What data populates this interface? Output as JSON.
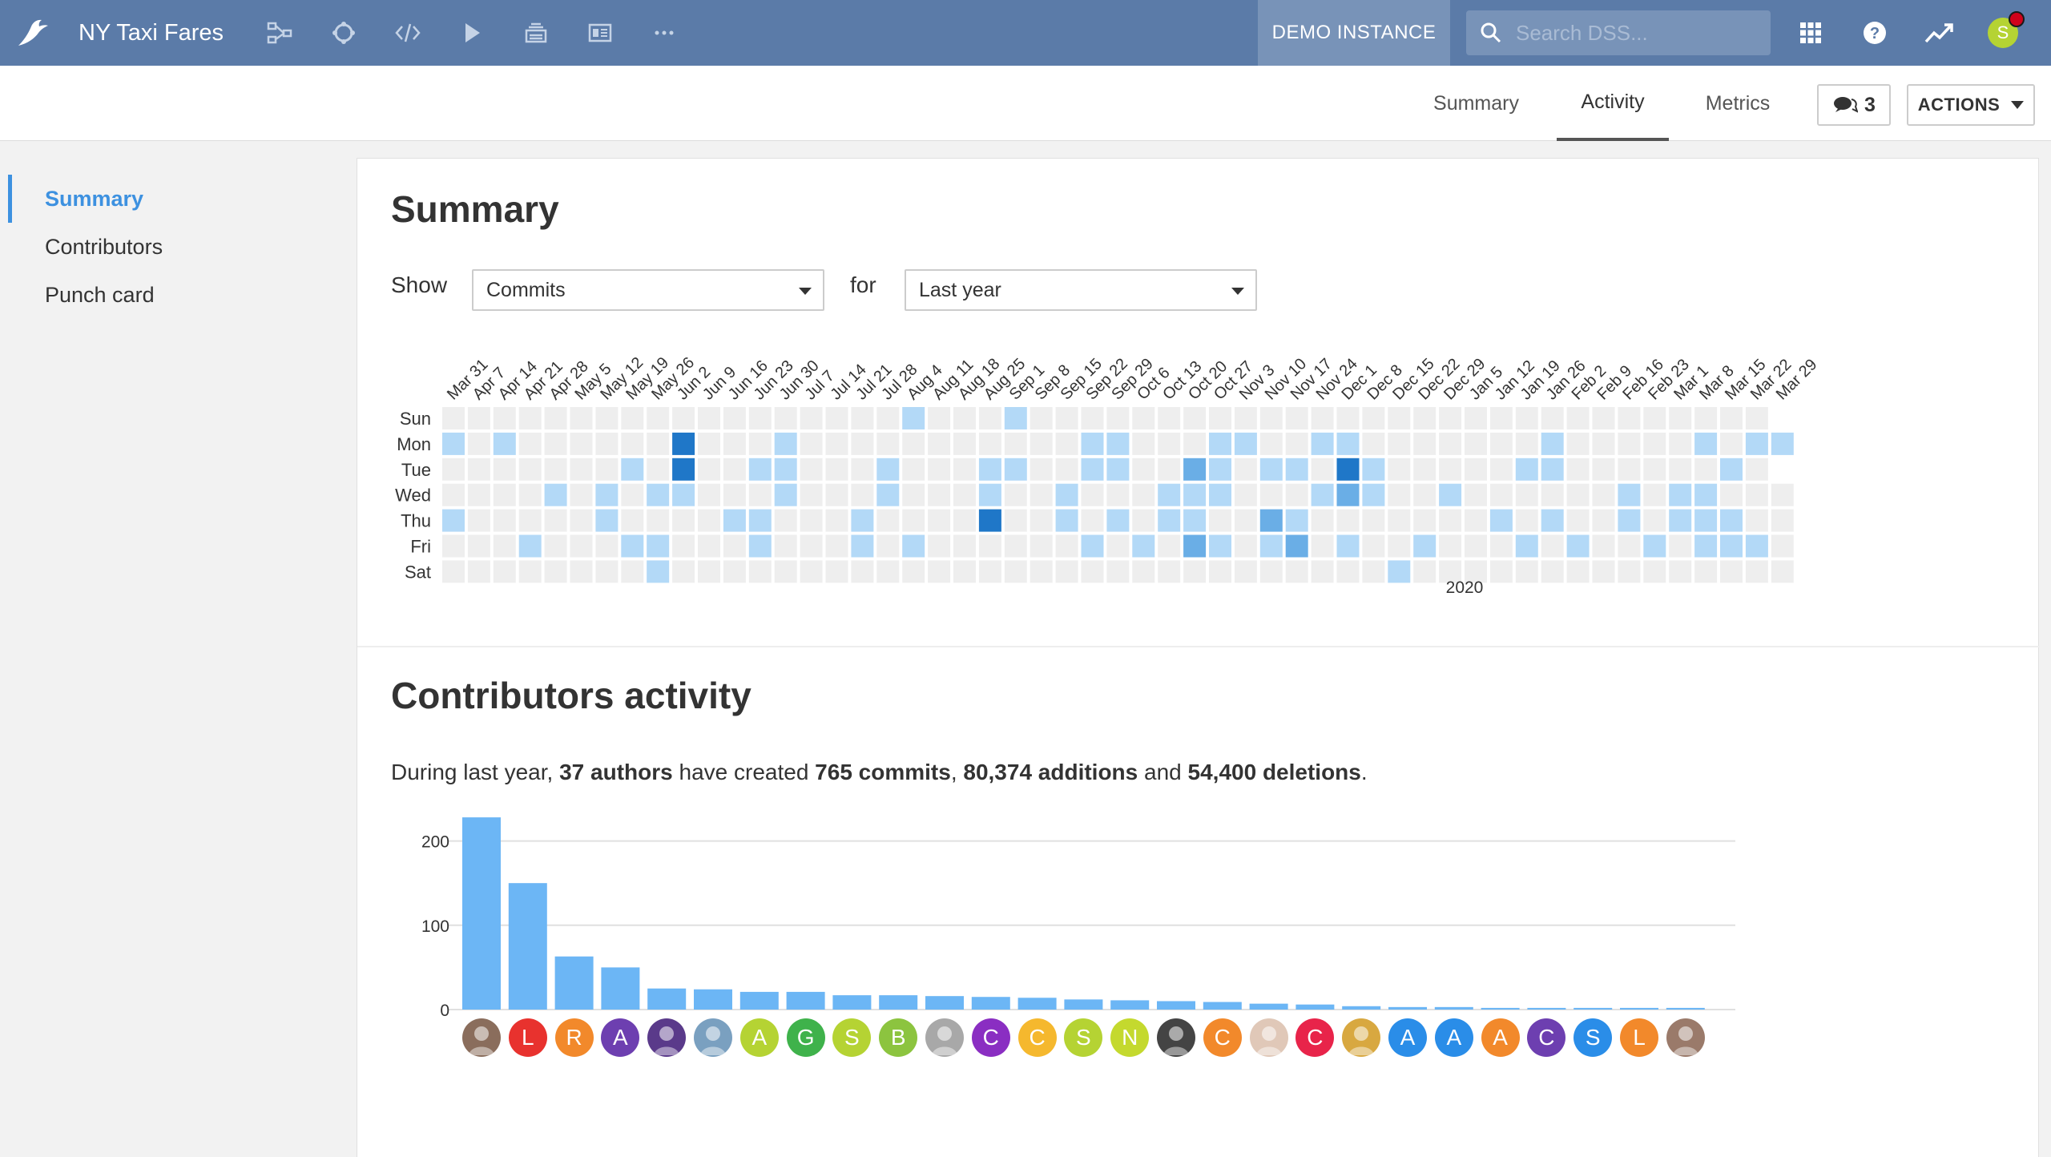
{
  "app": {
    "project_title": "NY Taxi Fares",
    "instance_label": "DEMO INSTANCE",
    "search_placeholder": "Search DSS...",
    "user_initial": "S",
    "nav_icons": [
      "flow-icon",
      "recipes-icon",
      "code-icon",
      "run-icon",
      "deploy-icon",
      "dashboard-icon",
      "more-icon"
    ]
  },
  "subnav": {
    "tabs": [
      {
        "label": "Summary",
        "active": false
      },
      {
        "label": "Activity",
        "active": true
      },
      {
        "label": "Metrics",
        "active": false
      }
    ],
    "comments_count": "3",
    "actions_label": "ACTIONS"
  },
  "sidebar": {
    "items": [
      {
        "label": "Summary",
        "active": true
      },
      {
        "label": "Contributors",
        "active": false
      },
      {
        "label": "Punch card",
        "active": false
      }
    ]
  },
  "summary": {
    "title": "Summary",
    "show_label": "Show",
    "show_value": "Commits",
    "for_label": "for",
    "for_value": "Last year"
  },
  "heatmap": {
    "week_labels": [
      "Mar 31",
      "Apr 7",
      "Apr 14",
      "Apr 21",
      "Apr 28",
      "May 5",
      "May 12",
      "May 19",
      "May 26",
      "Jun 2",
      "Jun 9",
      "Jun 16",
      "Jun 23",
      "Jun 30",
      "Jul 7",
      "Jul 14",
      "Jul 21",
      "Jul 28",
      "Aug 4",
      "Aug 11",
      "Aug 18",
      "Aug 25",
      "Sep 1",
      "Sep 8",
      "Sep 15",
      "Sep 22",
      "Sep 29",
      "Oct 6",
      "Oct 13",
      "Oct 20",
      "Oct 27",
      "Nov 3",
      "Nov 10",
      "Nov 17",
      "Nov 24",
      "Dec 1",
      "Dec 8",
      "Dec 15",
      "Dec 22",
      "Dec 29",
      "Jan 5",
      "Jan 12",
      "Jan 19",
      "Jan 26",
      "Feb 2",
      "Feb 9",
      "Feb 16",
      "Feb 23",
      "Mar 1",
      "Mar 8",
      "Mar 15",
      "Mar 22",
      "Mar 29"
    ],
    "day_labels": [
      "Sun",
      "Mon",
      "Tue",
      "Wed",
      "Thu",
      "Fri",
      "Sat"
    ],
    "year_label": "2020",
    "colors": [
      "#eeeeee",
      "#b3d9f7",
      "#6aaee6",
      "#1f77c8"
    ],
    "cells": [
      [
        0,
        0,
        0,
        0,
        0,
        0,
        0,
        0,
        0,
        0,
        0,
        0,
        0,
        0,
        0,
        0,
        0,
        0,
        1,
        0,
        0,
        0,
        1,
        0,
        0,
        0,
        0,
        0,
        0,
        0,
        0,
        0,
        0,
        0,
        0,
        0,
        0,
        0,
        0,
        0,
        0,
        0,
        0,
        0,
        0,
        0,
        0,
        0,
        0,
        0,
        0,
        0
      ],
      [
        1,
        0,
        1,
        0,
        0,
        0,
        0,
        0,
        0,
        3,
        0,
        0,
        0,
        1,
        0,
        0,
        0,
        0,
        0,
        0,
        0,
        0,
        0,
        0,
        0,
        1,
        1,
        0,
        0,
        0,
        1,
        1,
        0,
        0,
        1,
        1,
        0,
        0,
        0,
        0,
        0,
        0,
        0,
        1,
        0,
        0,
        0,
        0,
        0,
        1,
        0,
        1,
        1
      ],
      [
        0,
        0,
        0,
        0,
        0,
        0,
        0,
        1,
        0,
        3,
        0,
        0,
        1,
        1,
        0,
        0,
        0,
        1,
        0,
        0,
        0,
        1,
        1,
        0,
        0,
        1,
        1,
        0,
        0,
        2,
        1,
        0,
        1,
        1,
        0,
        3,
        1,
        0,
        0,
        0,
        0,
        0,
        1,
        1,
        0,
        0,
        0,
        0,
        0,
        0,
        1,
        0
      ],
      [
        0,
        0,
        0,
        0,
        1,
        0,
        1,
        0,
        1,
        1,
        0,
        0,
        0,
        1,
        0,
        0,
        0,
        1,
        0,
        0,
        0,
        1,
        0,
        0,
        1,
        0,
        0,
        0,
        1,
        1,
        1,
        0,
        0,
        0,
        1,
        2,
        1,
        0,
        0,
        1,
        0,
        0,
        0,
        0,
        0,
        0,
        1,
        0,
        1,
        1,
        0,
        0,
        0
      ],
      [
        1,
        0,
        0,
        0,
        0,
        0,
        1,
        0,
        0,
        0,
        0,
        1,
        1,
        0,
        0,
        0,
        1,
        0,
        0,
        0,
        0,
        3,
        0,
        0,
        1,
        0,
        1,
        0,
        1,
        1,
        0,
        0,
        2,
        1,
        0,
        0,
        0,
        0,
        0,
        0,
        0,
        1,
        0,
        1,
        0,
        0,
        1,
        0,
        1,
        1,
        1,
        0,
        0
      ],
      [
        0,
        0,
        0,
        1,
        0,
        0,
        0,
        1,
        1,
        0,
        0,
        0,
        1,
        0,
        0,
        0,
        1,
        0,
        1,
        0,
        0,
        0,
        0,
        0,
        0,
        1,
        0,
        1,
        0,
        2,
        1,
        0,
        1,
        2,
        0,
        1,
        0,
        0,
        1,
        0,
        0,
        0,
        1,
        0,
        1,
        0,
        0,
        1,
        0,
        1,
        1,
        1,
        0
      ],
      [
        0,
        0,
        0,
        0,
        0,
        0,
        0,
        0,
        1,
        0,
        0,
        0,
        0,
        0,
        0,
        0,
        0,
        0,
        0,
        0,
        0,
        0,
        0,
        0,
        0,
        0,
        0,
        0,
        0,
        0,
        0,
        0,
        0,
        0,
        0,
        0,
        0,
        1,
        0,
        0,
        0,
        0,
        0,
        0,
        0,
        0,
        0,
        0,
        0,
        0,
        0,
        0,
        0
      ]
    ]
  },
  "contributors": {
    "title": "Contributors activity",
    "stats": {
      "prefix": "During last year, ",
      "authors": "37 authors",
      "mid1": " have created ",
      "commits": "765 commits",
      "sep": ", ",
      "additions": "80,374 additions",
      "mid2": " and ",
      "deletions": "54,400 deletions",
      "suffix": "."
    },
    "avatars": [
      {
        "initial": "",
        "color": "#8a6d5c",
        "photo": true
      },
      {
        "initial": "L",
        "color": "#e8322e"
      },
      {
        "initial": "R",
        "color": "#f2892b"
      },
      {
        "initial": "A",
        "color": "#6d3fb0"
      },
      {
        "initial": "",
        "color": "#5a3a8a",
        "photo": true
      },
      {
        "initial": "",
        "color": "#7aa0c0",
        "photo": true
      },
      {
        "initial": "A",
        "color": "#b5d333"
      },
      {
        "initial": "G",
        "color": "#3fb24b"
      },
      {
        "initial": "S",
        "color": "#b5d333"
      },
      {
        "initial": "B",
        "color": "#8cc43f"
      },
      {
        "initial": "",
        "color": "#a8a8a8",
        "photo": true
      },
      {
        "initial": "C",
        "color": "#8a2ec2"
      },
      {
        "initial": "C",
        "color": "#f5b82e"
      },
      {
        "initial": "S",
        "color": "#b5d333"
      },
      {
        "initial": "N",
        "color": "#c4d92e"
      },
      {
        "initial": "",
        "color": "#444444",
        "photo": true
      },
      {
        "initial": "C",
        "color": "#f2892b"
      },
      {
        "initial": "",
        "color": "#e0c8b8",
        "photo": true
      },
      {
        "initial": "C",
        "color": "#e8244a"
      },
      {
        "initial": "",
        "color": "#d8a840",
        "photo": true
      },
      {
        "initial": "A",
        "color": "#2a8de8"
      },
      {
        "initial": "A",
        "color": "#2a8de8"
      },
      {
        "initial": "A",
        "color": "#f2892b"
      },
      {
        "initial": "C",
        "color": "#6d3fb0"
      },
      {
        "initial": "S",
        "color": "#2a8de8"
      },
      {
        "initial": "L",
        "color": "#f2892b"
      },
      {
        "initial": "",
        "color": "#9a7a6a",
        "photo": true
      }
    ]
  },
  "chart_data": {
    "type": "bar",
    "title": "",
    "xlabel": "",
    "ylabel": "",
    "ylim": [
      0,
      230
    ],
    "yticks": [
      0,
      100,
      200
    ],
    "grid": true,
    "bar_color": "#6cb6f5",
    "values": [
      228,
      150,
      63,
      50,
      25,
      24,
      21,
      21,
      17,
      17,
      16,
      15,
      14,
      12,
      11,
      10,
      9,
      7,
      6,
      4,
      3,
      3,
      2,
      2,
      2,
      2,
      2
    ]
  }
}
